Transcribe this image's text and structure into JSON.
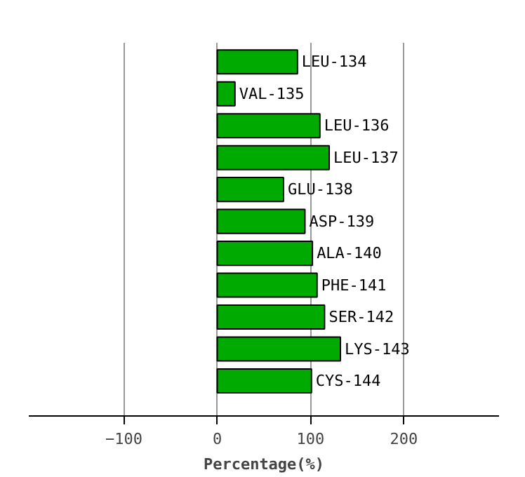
{
  "chart_data": {
    "type": "bar",
    "orientation": "horizontal",
    "xlabel": "Percentage(%)",
    "categories": [
      "LEU-134",
      "VAL-135",
      "LEU-136",
      "LEU-137",
      "GLU-138",
      "ASP-139",
      "ALA-140",
      "PHE-141",
      "SER-142",
      "LYS-143",
      "CYS-144"
    ],
    "values": [
      86,
      19,
      110,
      120,
      71,
      94,
      102,
      107,
      115,
      132,
      101
    ],
    "color": "#00aa00",
    "xlim": [
      -202,
      302
    ],
    "xticks": [
      -100,
      0,
      100,
      200
    ],
    "grid": "x",
    "tick_labels": "x"
  }
}
